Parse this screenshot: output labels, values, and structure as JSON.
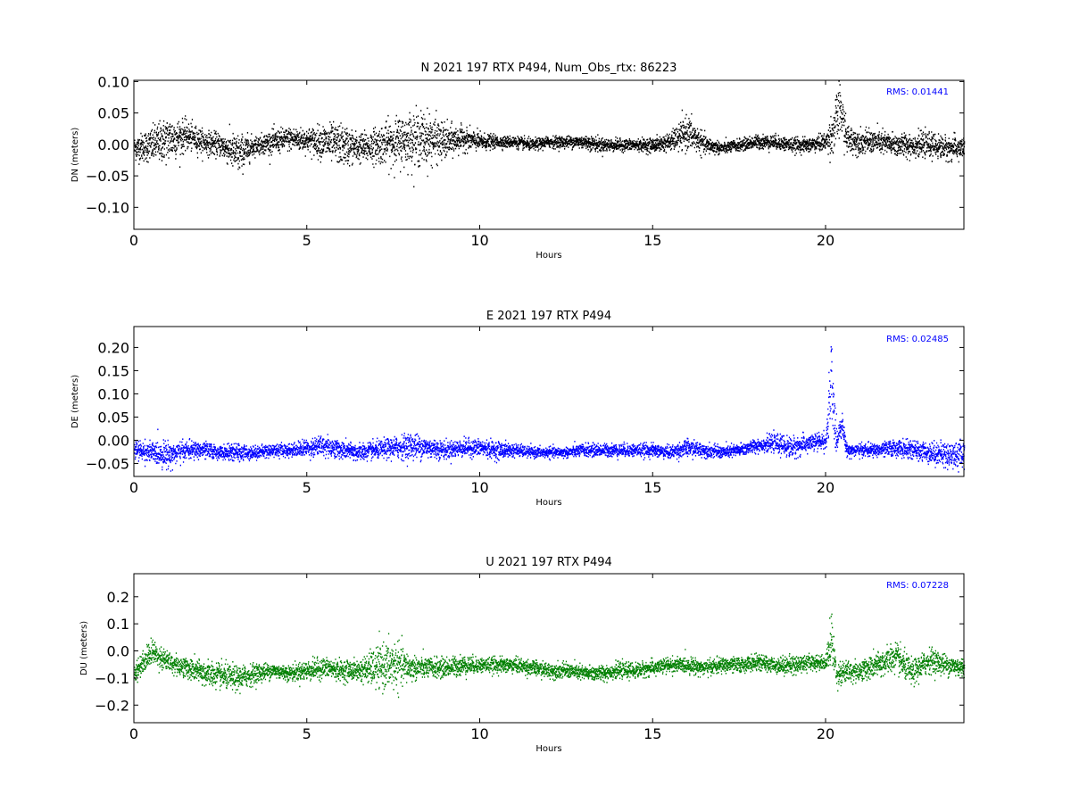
{
  "chart_data": [
    {
      "type": "scatter",
      "title": "N 2021 197 RTX  P494, Num_Obs_rtx: 86223",
      "xlabel": "Hours",
      "ylabel": "DN (meters)",
      "xlim": [
        0,
        24
      ],
      "ylim": [
        -0.135,
        0.102
      ],
      "xticks": [
        0,
        5,
        10,
        15,
        20
      ],
      "yticks": [
        -0.1,
        -0.05,
        0.0,
        0.05,
        0.1
      ],
      "ytick_labels": [
        "−0.10",
        "−0.05",
        "0.00",
        "0.05",
        "0.10"
      ],
      "grid": false,
      "rms_label": "RMS:  0.01441",
      "color": "#000000",
      "series": [
        {
          "x": [
            0,
            0.5,
            1,
            1.5,
            2,
            2.5,
            3,
            3.5,
            4,
            4.5,
            5,
            5.5,
            6,
            6.5,
            7,
            7.5,
            8,
            8.5,
            9,
            9.5,
            10,
            10.5,
            11,
            11.5,
            12,
            12.5,
            13,
            13.5,
            14,
            14.5,
            15,
            15.5,
            16,
            16.5,
            17,
            17.5,
            18,
            18.5,
            19,
            19.5,
            20,
            20.2,
            20.4,
            20.6,
            21,
            21.5,
            22,
            22.5,
            23,
            23.5,
            24
          ],
          "y": [
            -0.005,
            0.0,
            0.01,
            0.015,
            0.005,
            0.0,
            -0.015,
            0.0,
            0.005,
            0.01,
            0.008,
            0.005,
            0.0,
            -0.005,
            0.0,
            0.005,
            0.01,
            0.01,
            0.005,
            0.01,
            0.005,
            0.005,
            0.005,
            0.0,
            0.005,
            0.005,
            0.005,
            0.0,
            0.0,
            0.0,
            0.0,
            0.005,
            0.02,
            0.0,
            -0.005,
            0.0,
            0.005,
            0.005,
            0.0,
            0.0,
            0.005,
            0.02,
            0.06,
            0.01,
            0.005,
            0.005,
            0.0,
            0.0,
            0.0,
            -0.005,
            -0.005
          ],
          "spread": [
            0.02,
            0.03,
            0.04,
            0.025,
            0.02,
            0.02,
            0.035,
            0.015,
            0.02,
            0.02,
            0.02,
            0.03,
            0.035,
            0.025,
            0.03,
            0.04,
            0.045,
            0.045,
            0.03,
            0.02,
            0.015,
            0.01,
            0.01,
            0.01,
            0.01,
            0.01,
            0.012,
            0.012,
            0.01,
            0.01,
            0.012,
            0.015,
            0.03,
            0.015,
            0.01,
            0.01,
            0.012,
            0.012,
            0.012,
            0.012,
            0.015,
            0.04,
            0.05,
            0.025,
            0.02,
            0.02,
            0.02,
            0.02,
            0.02,
            0.02,
            0.02
          ]
        }
      ]
    },
    {
      "type": "scatter",
      "title": "E 2021 197 RTX  P494",
      "xlabel": "Hours",
      "ylabel": "DE (meters)",
      "xlim": [
        0,
        24
      ],
      "ylim": [
        -0.078,
        0.245
      ],
      "xticks": [
        0,
        5,
        10,
        15,
        20
      ],
      "yticks": [
        -0.05,
        0.0,
        0.05,
        0.1,
        0.15,
        0.2
      ],
      "ytick_labels": [
        "−0.05",
        "0.00",
        "0.05",
        "0.10",
        "0.15",
        "0.20"
      ],
      "grid": false,
      "rms_label": "RMS:  0.02485",
      "color": "#0000ff",
      "series": [
        {
          "x": [
            0,
            0.5,
            1,
            1.5,
            2,
            2.5,
            3,
            3.5,
            4,
            4.5,
            5,
            5.5,
            6,
            6.5,
            7,
            7.5,
            8,
            8.5,
            9,
            9.5,
            10,
            10.5,
            11,
            11.5,
            12,
            12.5,
            13,
            13.5,
            14,
            14.5,
            15,
            15.5,
            16,
            16.5,
            17,
            17.5,
            18,
            18.5,
            19,
            19.5,
            20,
            20.15,
            20.3,
            20.45,
            20.6,
            21,
            21.5,
            22,
            22.5,
            23,
            23.5,
            24
          ],
          "y": [
            -0.02,
            -0.025,
            -0.03,
            -0.02,
            -0.02,
            -0.025,
            -0.025,
            -0.025,
            -0.02,
            -0.02,
            -0.015,
            -0.01,
            -0.02,
            -0.025,
            -0.02,
            -0.015,
            -0.01,
            -0.015,
            -0.02,
            -0.015,
            -0.015,
            -0.02,
            -0.02,
            -0.025,
            -0.025,
            -0.025,
            -0.02,
            -0.02,
            -0.02,
            -0.02,
            -0.02,
            -0.025,
            -0.015,
            -0.02,
            -0.025,
            -0.02,
            -0.01,
            -0.005,
            -0.015,
            -0.005,
            0.0,
            0.12,
            0.0,
            0.04,
            -0.02,
            -0.02,
            -0.02,
            -0.015,
            -0.02,
            -0.025,
            -0.03,
            -0.03
          ],
          "spread": [
            0.02,
            0.025,
            0.03,
            0.02,
            0.02,
            0.015,
            0.02,
            0.015,
            0.015,
            0.015,
            0.02,
            0.025,
            0.02,
            0.02,
            0.02,
            0.025,
            0.03,
            0.025,
            0.02,
            0.02,
            0.02,
            0.02,
            0.015,
            0.012,
            0.012,
            0.012,
            0.015,
            0.015,
            0.015,
            0.015,
            0.015,
            0.015,
            0.02,
            0.015,
            0.015,
            0.015,
            0.015,
            0.02,
            0.025,
            0.02,
            0.02,
            0.12,
            0.03,
            0.025,
            0.015,
            0.015,
            0.015,
            0.02,
            0.02,
            0.025,
            0.03,
            0.03
          ]
        }
      ]
    },
    {
      "type": "scatter",
      "title": "U 2021 197 RTX  P494",
      "xlabel": "Hours",
      "ylabel": "DU (meters)",
      "xlim": [
        0,
        24
      ],
      "ylim": [
        -0.265,
        0.285
      ],
      "xticks": [
        0,
        5,
        10,
        15,
        20
      ],
      "yticks": [
        -0.2,
        -0.1,
        0.0,
        0.1,
        0.2
      ],
      "ytick_labels": [
        "−0.2",
        "−0.1",
        "0.0",
        "0.1",
        "0.2"
      ],
      "grid": false,
      "rms_label": "RMS:  0.07228",
      "color": "#008000",
      "series": [
        {
          "x": [
            0,
            0.5,
            1,
            1.5,
            2,
            2.5,
            3,
            3.5,
            4,
            4.5,
            5,
            5.5,
            6,
            6.5,
            7,
            7.5,
            8,
            8.5,
            9,
            9.5,
            10,
            10.5,
            11,
            11.5,
            12,
            12.5,
            13,
            13.5,
            14,
            14.5,
            15,
            15.5,
            16,
            16.5,
            17,
            17.5,
            18,
            18.5,
            19,
            19.5,
            20,
            20.15,
            20.3,
            21,
            21.5,
            22,
            22.5,
            23,
            23.5,
            24
          ],
          "y": [
            -0.08,
            0.0,
            -0.04,
            -0.06,
            -0.08,
            -0.09,
            -0.1,
            -0.08,
            -0.07,
            -0.08,
            -0.07,
            -0.06,
            -0.07,
            -0.07,
            -0.06,
            -0.05,
            -0.06,
            -0.06,
            -0.06,
            -0.05,
            -0.05,
            -0.05,
            -0.05,
            -0.06,
            -0.07,
            -0.07,
            -0.08,
            -0.08,
            -0.07,
            -0.07,
            -0.06,
            -0.05,
            -0.05,
            -0.06,
            -0.05,
            -0.05,
            -0.04,
            -0.05,
            -0.05,
            -0.04,
            -0.04,
            0.05,
            -0.08,
            -0.07,
            -0.05,
            -0.02,
            -0.08,
            -0.03,
            -0.05,
            -0.06
          ],
          "spread": [
            0.04,
            0.05,
            0.04,
            0.04,
            0.05,
            0.05,
            0.05,
            0.04,
            0.03,
            0.03,
            0.04,
            0.04,
            0.04,
            0.04,
            0.08,
            0.1,
            0.05,
            0.04,
            0.04,
            0.04,
            0.03,
            0.03,
            0.03,
            0.03,
            0.03,
            0.03,
            0.03,
            0.03,
            0.03,
            0.03,
            0.03,
            0.03,
            0.03,
            0.03,
            0.03,
            0.03,
            0.03,
            0.03,
            0.04,
            0.03,
            0.03,
            0.12,
            0.05,
            0.04,
            0.05,
            0.06,
            0.05,
            0.05,
            0.04,
            0.04
          ]
        }
      ]
    }
  ]
}
